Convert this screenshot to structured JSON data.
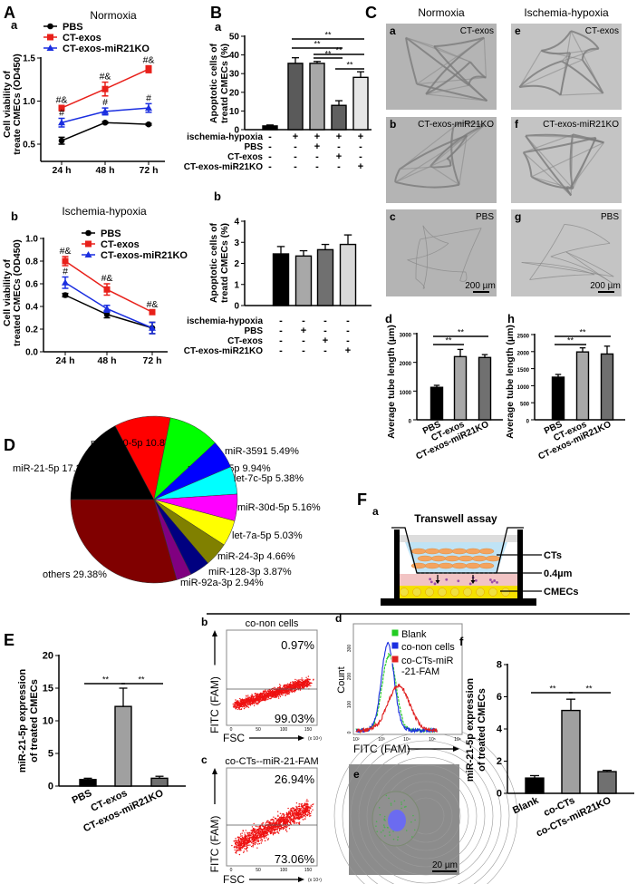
{
  "panels": {
    "A": "A",
    "B": "B",
    "C": "C",
    "D": "D",
    "E": "E",
    "F": "F"
  },
  "panel_C": {
    "col_titles": [
      "Normoxia",
      "Ischemia-hypoxia"
    ],
    "images": [
      {
        "sub": "a",
        "label": "CT-exos"
      },
      {
        "sub": "b",
        "label": "CT-exos-miR21KO"
      },
      {
        "sub": "c",
        "label": "PBS"
      },
      {
        "sub": "e",
        "label": "CT-exos"
      },
      {
        "sub": "f",
        "label": "CT-exos-miR21KO"
      },
      {
        "sub": "g",
        "label": "PBS"
      }
    ],
    "scale_bar": "200 µm"
  },
  "panel_F": {
    "sub_a": "a",
    "diagram_title": "Transwell assay",
    "labels": [
      "CTs",
      "0.4µm",
      "CMECs"
    ],
    "colors": {
      "medium": "#bfe3f5",
      "cts": "#f4a460",
      "membrane_zone": "#f2c4c4",
      "cmecs": "#f5e000",
      "vesicles": "#9b4fa5"
    },
    "image_e": {
      "sub": "e",
      "scale_bar": "20 µm"
    }
  },
  "chart_data": [
    {
      "id": "Aa",
      "type": "line",
      "sublabel": "a",
      "title": "Normoxia",
      "ylabel": [
        "Cell viability of",
        "treate CMECs (OD450)"
      ],
      "categories": [
        "24 h",
        "48 h",
        "72 h"
      ],
      "ylim": [
        0.3,
        1.5
      ],
      "yticks": [
        "0.5",
        "1.0",
        "1.5"
      ],
      "series": [
        {
          "name": "PBS",
          "color": "#000000",
          "marker": "circle",
          "values": [
            0.54,
            0.75,
            0.73
          ],
          "errors": [
            0.04,
            0.01,
            0.01
          ],
          "annotations": [
            "",
            "",
            ""
          ]
        },
        {
          "name": "CT-exos",
          "color": "#e8201a",
          "marker": "square",
          "values": [
            0.92,
            1.14,
            1.37
          ],
          "errors": [
            0.03,
            0.08,
            0.04
          ],
          "annotations": [
            "#&",
            "#&",
            "#&"
          ]
        },
        {
          "name": "CT-exos-miR21KO",
          "color": "#1a2ee0",
          "marker": "triangle",
          "values": [
            0.75,
            0.88,
            0.92
          ],
          "errors": [
            0.05,
            0.04,
            0.05
          ],
          "annotations": [
            "#",
            "#",
            "#"
          ]
        }
      ],
      "legend": "top-left"
    },
    {
      "id": "Ab",
      "type": "line",
      "sublabel": "b",
      "title": "Ischemia-hypoxia",
      "ylabel": [
        "Cell viability of",
        "treated CMECs (OD450)"
      ],
      "categories": [
        "24 h",
        "48 h",
        "72 h"
      ],
      "ylim": [
        0,
        1.0
      ],
      "yticks": [
        "0.0",
        "0.2",
        "0.4",
        "0.6",
        "0.8",
        "1.0"
      ],
      "series": [
        {
          "name": "PBS",
          "color": "#000000",
          "marker": "circle",
          "values": [
            0.5,
            0.33,
            0.21
          ],
          "errors": [
            0.015,
            0.03,
            0.05
          ],
          "annotations": [
            "",
            "",
            ""
          ]
        },
        {
          "name": "CT-exos",
          "color": "#e8201a",
          "marker": "square",
          "values": [
            0.8,
            0.55,
            0.35
          ],
          "errors": [
            0.04,
            0.05,
            0.02
          ],
          "annotations": [
            "#&",
            "#&",
            "#&"
          ]
        },
        {
          "name": "CT-exos-miR21KO",
          "color": "#1a2ee0",
          "marker": "triangle",
          "values": [
            0.61,
            0.38,
            0.21
          ],
          "errors": [
            0.05,
            0.03,
            0.05
          ],
          "annotations": [
            "#",
            "",
            ""
          ]
        }
      ],
      "legend": "top-right"
    },
    {
      "id": "Ba",
      "type": "bar",
      "sublabel": "a",
      "ylabel": [
        "Apoptotic cells of",
        "treatd CMECs (%)"
      ],
      "ylim": [
        0,
        50
      ],
      "yticks": [
        "0",
        "10",
        "20",
        "30",
        "40",
        "50"
      ],
      "values": [
        2,
        35.5,
        35.5,
        13,
        28
      ],
      "errors": [
        0.5,
        3,
        1,
        2.5,
        3
      ],
      "colors": [
        "#000000",
        "#5a5a5a",
        "#a8a8a8",
        "#606060",
        "#e6e6e6"
      ],
      "conditions": [
        {
          "label": "ischemia-hypoxia",
          "signs": [
            "-",
            "+",
            "+",
            "+",
            "+"
          ]
        },
        {
          "label": "PBS",
          "signs": [
            "-",
            "-",
            "+",
            "-",
            "-"
          ]
        },
        {
          "label": "CT-exos",
          "signs": [
            "-",
            "-",
            "-",
            "+",
            "-"
          ]
        },
        {
          "label": "CT-exos-miR21KO",
          "signs": [
            "-",
            "-",
            "-",
            "-",
            "+"
          ]
        }
      ],
      "significance": [
        {
          "between": [
            1,
            4
          ],
          "label": "**"
        },
        {
          "between": [
            1,
            3
          ],
          "label": "**"
        },
        {
          "between": [
            2,
            4
          ],
          "label": "**"
        },
        {
          "between": [
            2,
            3
          ],
          "label": "**"
        },
        {
          "between": [
            3,
            4
          ],
          "label": "**"
        }
      ]
    },
    {
      "id": "Bb",
      "type": "bar",
      "sublabel": "b",
      "ylabel": [
        "Apoptotic cells of",
        "treatd CMECs (%)"
      ],
      "ylim": [
        0,
        4
      ],
      "yticks": [
        "0",
        "1",
        "2",
        "3",
        "4"
      ],
      "values": [
        2.45,
        2.35,
        2.65,
        2.9
      ],
      "errors": [
        0.35,
        0.25,
        0.25,
        0.45
      ],
      "colors": [
        "#000000",
        "#a8a8a8",
        "#707070",
        "#d8d8d8"
      ],
      "conditions": [
        {
          "label": "ischemia-hypoxia",
          "signs": [
            "-",
            "-",
            "-",
            "-"
          ]
        },
        {
          "label": "PBS",
          "signs": [
            "-",
            "+",
            "-",
            "-"
          ]
        },
        {
          "label": "CT-exos",
          "signs": [
            "-",
            "-",
            "+",
            "-"
          ]
        },
        {
          "label": "CT-exos-miR21KO",
          "signs": [
            "-",
            "-",
            "-",
            "+"
          ]
        }
      ],
      "significance": []
    },
    {
      "id": "Cd",
      "type": "bar",
      "sublabel": "d",
      "ylabel": [
        "Average tube length (µm)"
      ],
      "categories": [
        "PBS",
        "CT-exos",
        "CT-exos-miR21KO"
      ],
      "ylim": [
        0,
        3000
      ],
      "yticks": [
        "0",
        "1000",
        "2000",
        "3000"
      ],
      "values": [
        1130,
        2200,
        2170
      ],
      "errors": [
        70,
        250,
        100
      ],
      "colors": [
        "#000000",
        "#a8a8a8",
        "#707070"
      ],
      "significance": [
        {
          "between": [
            0,
            2
          ],
          "label": "**"
        },
        {
          "between": [
            0,
            1
          ],
          "label": "**"
        }
      ]
    },
    {
      "id": "Ch",
      "type": "bar",
      "sublabel": "h",
      "ylabel": [
        "Average tube length (µm)"
      ],
      "categories": [
        "PBS",
        "CT-exos",
        "CT-exos-miR21KO"
      ],
      "ylim": [
        0,
        2500
      ],
      "yticks": [
        "0",
        "500",
        "1000",
        "1500",
        "2000",
        "2500"
      ],
      "values": [
        1250,
        1990,
        1930
      ],
      "errors": [
        80,
        120,
        230
      ],
      "colors": [
        "#000000",
        "#a8a8a8",
        "#707070"
      ],
      "significance": [
        {
          "between": [
            0,
            2
          ],
          "label": "**"
        },
        {
          "between": [
            0,
            1
          ],
          "label": "**"
        }
      ]
    },
    {
      "id": "D",
      "type": "pie",
      "slices": [
        {
          "label": "miR-21-5p 17.27%",
          "value": 17.27,
          "color": "#000000"
        },
        {
          "label": "miR-100-5p 10.87%",
          "value": 10.87,
          "color": "#ff0000"
        },
        {
          "label": "miR-99a-5p 9.94%",
          "value": 9.94,
          "color": "#00ff00"
        },
        {
          "label": "miR-3591 5.49%",
          "value": 5.49,
          "color": "#0000ff"
        },
        {
          "label": "let-7c-5p 5.38%",
          "value": 5.38,
          "color": "#00ffff"
        },
        {
          "label": "miR-30d-5p 5.16%",
          "value": 5.16,
          "color": "#ff00ff"
        },
        {
          "label": "let-7a-5p 5.03%",
          "value": 5.03,
          "color": "#ffff00"
        },
        {
          "label": "miR-24-3p 4.66%",
          "value": 4.66,
          "color": "#808000"
        },
        {
          "label": "miR-128-3p 3.87%",
          "value": 3.87,
          "color": "#000080"
        },
        {
          "label": "miR-92a-3p 2.94%",
          "value": 2.94,
          "color": "#800080"
        },
        {
          "label": "others 29.38%",
          "value": 29.38,
          "color": "#800000"
        }
      ]
    },
    {
      "id": "E",
      "type": "bar",
      "ylabel": [
        "miR-21-5p expression",
        "of treated CMECs"
      ],
      "categories": [
        "PBS",
        "CT-exos",
        "CT-exos-miR21KO"
      ],
      "ylim": [
        0,
        20
      ],
      "yticks": [
        "0",
        "5",
        "10",
        "15",
        "20"
      ],
      "values": [
        1.0,
        12.2,
        1.2
      ],
      "errors": [
        0.2,
        2.8,
        0.3
      ],
      "colors": [
        "#000000",
        "#a0a0a0",
        "#707070"
      ],
      "significance": [
        {
          "between": [
            0,
            1
          ],
          "label": "**"
        },
        {
          "between": [
            1,
            2
          ],
          "label": "**"
        }
      ]
    },
    {
      "id": "Fb",
      "type": "scatter",
      "sublabel": "b",
      "title": "co-non cells",
      "xlabel": "FSC",
      "ylabel": "FITC (FAM)",
      "xunit": "(x 10⁴)",
      "xticks": [
        "0",
        "50",
        "100",
        "150"
      ],
      "quadrants": {
        "upper": "0.97%",
        "lower": "99.03%"
      }
    },
    {
      "id": "Fc",
      "type": "scatter",
      "sublabel": "c",
      "title": "co-CTs--miR-21-FAM",
      "xlabel": "FSC",
      "ylabel": "FITC (FAM)",
      "xunit": "(x 10⁴)",
      "xticks": [
        "0",
        "50",
        "100",
        "150"
      ],
      "quadrants": {
        "upper": "26.94%",
        "lower": "73.06%"
      }
    },
    {
      "id": "Fd",
      "type": "histogram",
      "sublabel": "d",
      "xlabel": "FITC (FAM)",
      "ylabel": "Count",
      "xscale": "log",
      "xticks": [
        "10²",
        "10³",
        "10⁴",
        "10⁵",
        "10⁶"
      ],
      "yticks": [
        "0",
        "100",
        "200",
        "300"
      ],
      "series": [
        {
          "name": "Blank",
          "color": "#22cc22",
          "peak_log10": 3.3,
          "peak_count": 270,
          "spread_log10": 0.27
        },
        {
          "name": "co-non cells",
          "color": "#1a2ee0",
          "peak_log10": 3.25,
          "peak_count": 310,
          "spread_log10": 0.25
        },
        {
          "name": "co-CTs-miR-21-FAM",
          "legend_lines": [
            "co-CTs-miR",
            "-21-FAM"
          ],
          "color": "#e02020",
          "peak_log10": 3.68,
          "peak_count": 160,
          "spread_log10": 0.42
        }
      ],
      "legend": "top-right"
    },
    {
      "id": "Ff",
      "type": "bar",
      "sublabel": "f",
      "ylabel": [
        "miR-21-5p expression",
        "of treated CMECs"
      ],
      "categories": [
        "Blank",
        "co-CTs",
        "co-CTs-miR21KO"
      ],
      "ylim": [
        0,
        8
      ],
      "yticks": [
        "0",
        "2",
        "4",
        "6",
        "8"
      ],
      "values": [
        0.95,
        5.15,
        1.35
      ],
      "errors": [
        0.15,
        0.7,
        0.08
      ],
      "colors": [
        "#000000",
        "#a0a0a0",
        "#707070"
      ],
      "significance": [
        {
          "between": [
            0,
            1
          ],
          "label": "**"
        },
        {
          "between": [
            1,
            2
          ],
          "label": "**"
        }
      ]
    }
  ]
}
